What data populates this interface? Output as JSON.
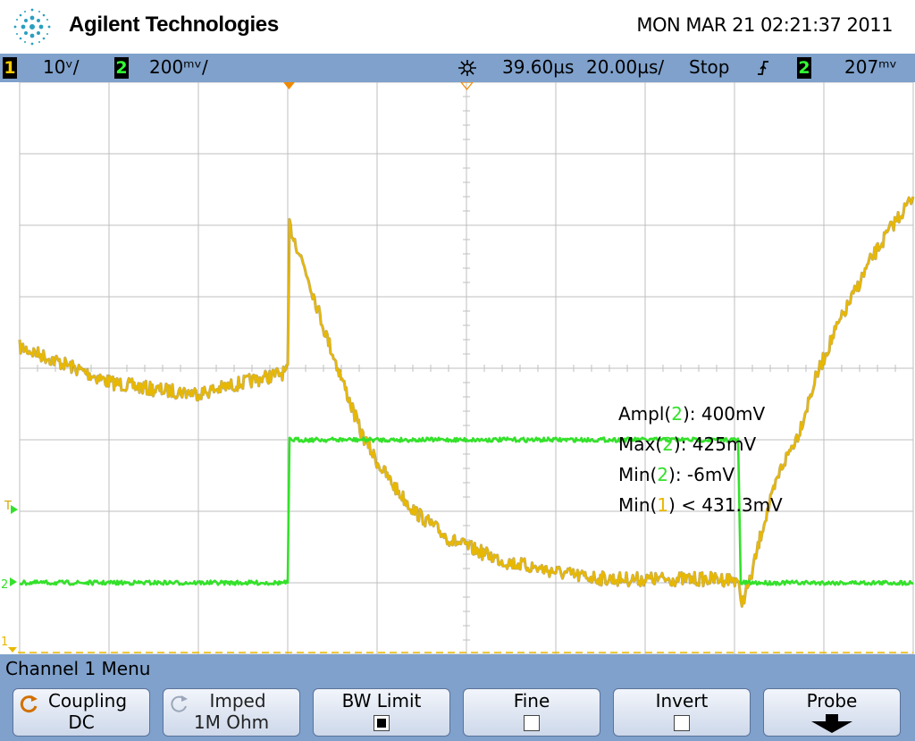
{
  "header": {
    "brand": "Agilent Technologies",
    "datetime": "MON MAR 21 02:21:37 2011",
    "logo_icon": "agilent-spark-icon"
  },
  "status": {
    "ch1_num": "1",
    "ch1_scale": "10ᵛ/",
    "ch2_num": "2",
    "ch2_scale": "200ᵐᵛ/",
    "delay_icon": "delay-star-icon",
    "delay": "39.60µs",
    "timebase": "20.00µs/",
    "run_state": "Stop",
    "trigger_icon": "rising-edge-icon",
    "trigger_source": "2",
    "trigger_level": "207ᵐᵛ"
  },
  "colors": {
    "ch1": "#e8b800",
    "ch2": "#33e12a",
    "ch1_edge": "#8a6a00",
    "grid": "#bfbfbf",
    "bar": "#7fa1cc",
    "trigger_marker": "#f08a00"
  },
  "measurements": {
    "m1_label": "Ampl(",
    "m1_ch": "2",
    "m1_value": "): 400mV",
    "m2_label": "Max(",
    "m2_ch": "2",
    "m2_value": "): 425mV",
    "m3_label": "Min(",
    "m3_ch": "2",
    "m3_value": "): -6mV",
    "m4_label": "Min(",
    "m4_ch": "1",
    "m4_value": ") < 431.3mV"
  },
  "markers": {
    "trigger_left": "T",
    "ch2_ground": "2",
    "ch1_ground": "1"
  },
  "menu": {
    "title": "Channel 1  Menu",
    "softkeys": [
      {
        "label": "Coupling",
        "value": "DC",
        "icon": "rotate-knob-icon"
      },
      {
        "label": "Imped",
        "value": "1M Ohm",
        "icon": "rotate-knob-icon"
      },
      {
        "label": "BW Limit",
        "checked": true
      },
      {
        "label": "Fine",
        "checked": false
      },
      {
        "label": "Invert",
        "checked": false
      },
      {
        "label": "Probe",
        "icon": "down-arrow-icon"
      }
    ]
  },
  "chart_data": {
    "type": "line",
    "title": "",
    "xlabel": "",
    "ylabel": "",
    "grid": true,
    "divisions": {
      "x": 10,
      "y": 8
    },
    "xlim": [
      -60.4,
      139.6
    ],
    "x_units": "µs",
    "series": [
      {
        "name": "1",
        "color": "#e8b800",
        "x": [
          -60.4,
          -50,
          -40,
          -30,
          -20,
          -0.4,
          0,
          4,
          8,
          12,
          16,
          20,
          24,
          28,
          32,
          36,
          40,
          48,
          56,
          64,
          72,
          80,
          88,
          96,
          100.4,
          101,
          103,
          106,
          110,
          114,
          118,
          122,
          126,
          130,
          135,
          139.6
        ],
        "y_div": [
          3.7,
          3.95,
          4.2,
          4.3,
          4.35,
          4.05,
          2.0,
          2.7,
          3.5,
          4.2,
          4.9,
          5.35,
          5.7,
          6.0,
          6.2,
          6.4,
          6.5,
          6.7,
          6.8,
          6.9,
          6.95,
          6.95,
          6.95,
          6.95,
          6.95,
          7.3,
          7.0,
          6.2,
          5.4,
          4.9,
          4.1,
          3.5,
          3.0,
          2.5,
          2.0,
          1.6
        ],
        "noise_div": 0.1
      },
      {
        "name": "2",
        "color": "#33e12a",
        "x": [
          -60.4,
          -0.4,
          0,
          100.4,
          101,
          139.6
        ],
        "y_div": [
          7.0,
          7.0,
          5.0,
          5.0,
          7.0,
          7.0
        ],
        "noise_div": 0.03
      }
    ]
  }
}
